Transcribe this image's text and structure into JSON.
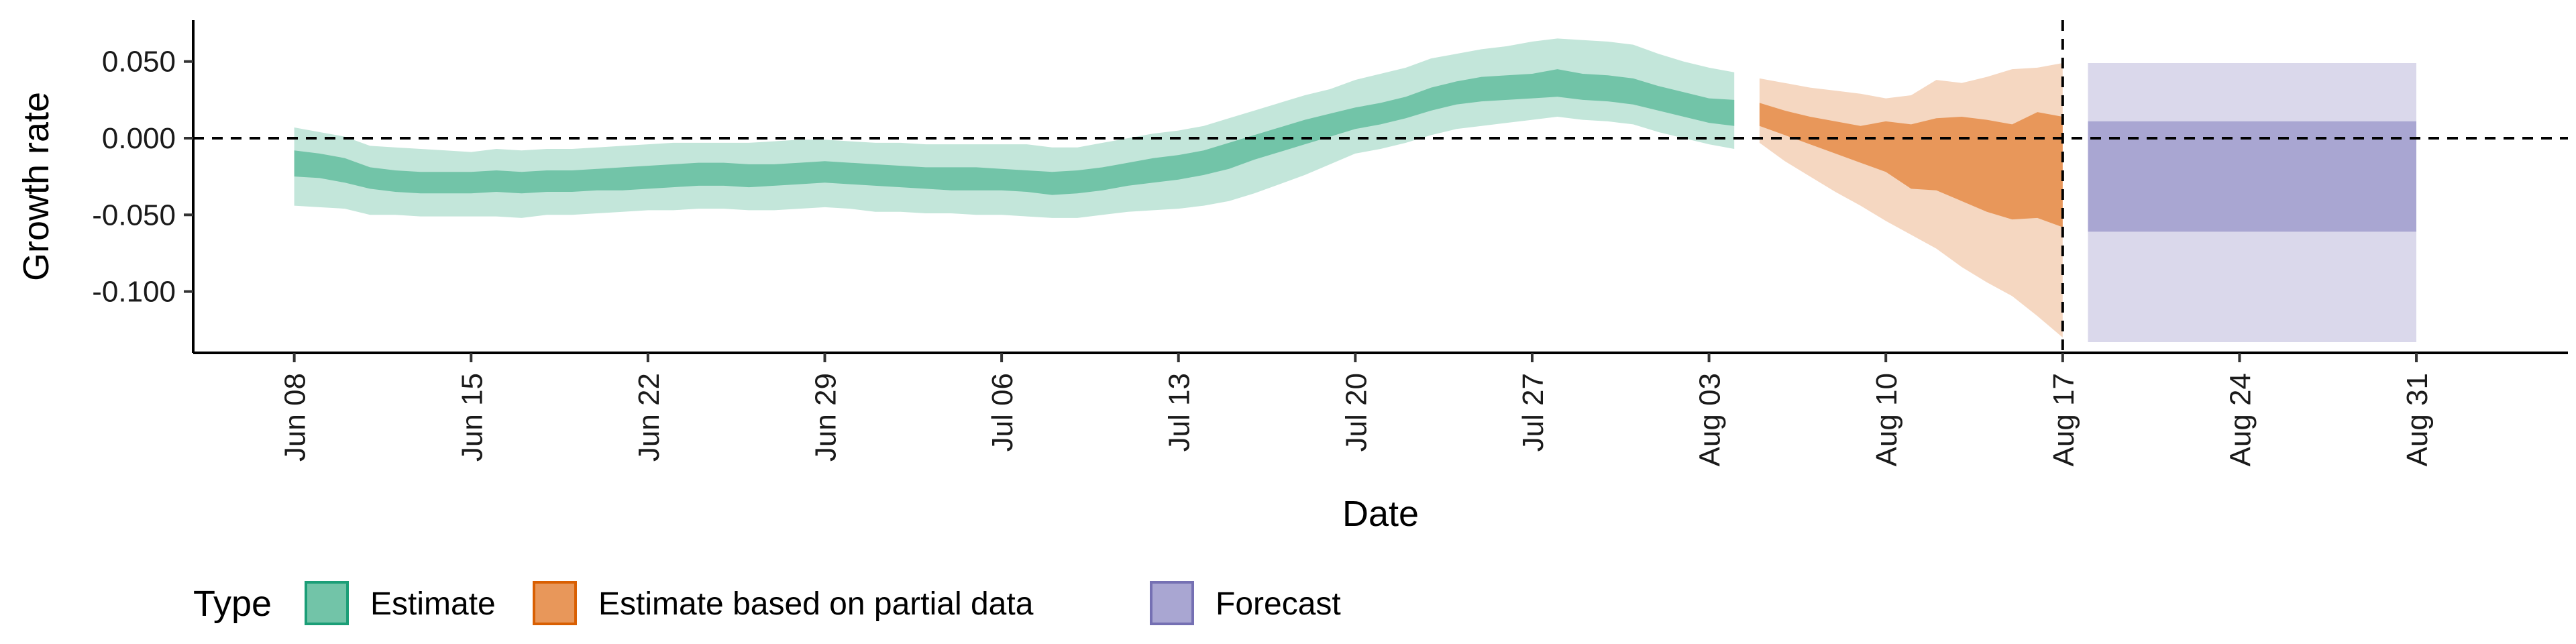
{
  "chart_data": {
    "type": "area",
    "xlabel": "Date",
    "ylabel": "Growth rate",
    "x_tick_labels": [
      "Jun 08",
      "Jun 15",
      "Jun 22",
      "Jun 29",
      "Jul 06",
      "Jul 13",
      "Jul 20",
      "Jul 27",
      "Aug 03",
      "Aug 10",
      "Aug 17",
      "Aug 24",
      "Aug 31"
    ],
    "x_tick_dates": [
      "2020-06-08",
      "2020-06-15",
      "2020-06-22",
      "2020-06-29",
      "2020-07-06",
      "2020-07-13",
      "2020-07-20",
      "2020-07-27",
      "2020-08-03",
      "2020-08-10",
      "2020-08-17",
      "2020-08-24",
      "2020-08-31"
    ],
    "y_tick_values": [
      0.05,
      0.0,
      -0.05,
      -0.1
    ],
    "y_tick_labels": [
      "0.050",
      "0.000",
      "-0.050",
      "-0.100"
    ],
    "ylim": [
      -0.14,
      0.077
    ],
    "xlim": [
      "2020-06-04",
      "2020-09-06"
    ],
    "grid": false,
    "reference_lines": [
      {
        "orientation": "horizontal",
        "y": 0.0,
        "style": "dashed"
      },
      {
        "orientation": "vertical",
        "x": "2020-08-17",
        "style": "dashed"
      }
    ],
    "legend": {
      "title": "Type",
      "position": "bottom-left",
      "entries": [
        {
          "label": "Estimate",
          "fill": "#72C4A8",
          "stroke": "#1B9E77"
        },
        {
          "label": "Estimate based on partial data",
          "fill": "#E8975A",
          "stroke": "#D95F02"
        },
        {
          "label": "Forecast",
          "fill": "#A9A6D2",
          "stroke": "#7570B3"
        }
      ]
    },
    "series": [
      {
        "name": "Estimate",
        "inner_color": "#72C4A8",
        "outer_color": "#C3E6DA",
        "points": [
          {
            "x": "2020-06-08",
            "lo90": -0.044,
            "lo50": -0.025,
            "hi50": -0.008,
            "hi90": 0.007
          },
          {
            "x": "2020-06-09",
            "lo90": -0.045,
            "lo50": -0.026,
            "hi50": -0.01,
            "hi90": 0.004
          },
          {
            "x": "2020-06-10",
            "lo90": -0.046,
            "lo50": -0.029,
            "hi50": -0.013,
            "hi90": 0.001
          },
          {
            "x": "2020-06-11",
            "lo90": -0.05,
            "lo50": -0.033,
            "hi50": -0.019,
            "hi90": -0.005
          },
          {
            "x": "2020-06-12",
            "lo90": -0.05,
            "lo50": -0.035,
            "hi50": -0.021,
            "hi90": -0.006
          },
          {
            "x": "2020-06-13",
            "lo90": -0.051,
            "lo50": -0.036,
            "hi50": -0.022,
            "hi90": -0.007
          },
          {
            "x": "2020-06-14",
            "lo90": -0.051,
            "lo50": -0.036,
            "hi50": -0.022,
            "hi90": -0.008
          },
          {
            "x": "2020-06-15",
            "lo90": -0.051,
            "lo50": -0.036,
            "hi50": -0.022,
            "hi90": -0.009
          },
          {
            "x": "2020-06-16",
            "lo90": -0.051,
            "lo50": -0.035,
            "hi50": -0.021,
            "hi90": -0.007
          },
          {
            "x": "2020-06-17",
            "lo90": -0.052,
            "lo50": -0.036,
            "hi50": -0.022,
            "hi90": -0.008
          },
          {
            "x": "2020-06-18",
            "lo90": -0.05,
            "lo50": -0.035,
            "hi50": -0.021,
            "hi90": -0.007
          },
          {
            "x": "2020-06-19",
            "lo90": -0.05,
            "lo50": -0.035,
            "hi50": -0.021,
            "hi90": -0.007
          },
          {
            "x": "2020-06-20",
            "lo90": -0.049,
            "lo50": -0.034,
            "hi50": -0.02,
            "hi90": -0.006
          },
          {
            "x": "2020-06-21",
            "lo90": -0.048,
            "lo50": -0.034,
            "hi50": -0.019,
            "hi90": -0.005
          },
          {
            "x": "2020-06-22",
            "lo90": -0.047,
            "lo50": -0.033,
            "hi50": -0.018,
            "hi90": -0.004
          },
          {
            "x": "2020-06-23",
            "lo90": -0.047,
            "lo50": -0.032,
            "hi50": -0.017,
            "hi90": -0.003
          },
          {
            "x": "2020-06-24",
            "lo90": -0.046,
            "lo50": -0.031,
            "hi50": -0.016,
            "hi90": -0.003
          },
          {
            "x": "2020-06-25",
            "lo90": -0.046,
            "lo50": -0.031,
            "hi50": -0.016,
            "hi90": -0.003
          },
          {
            "x": "2020-06-26",
            "lo90": -0.047,
            "lo50": -0.032,
            "hi50": -0.017,
            "hi90": -0.003
          },
          {
            "x": "2020-06-27",
            "lo90": -0.047,
            "lo50": -0.031,
            "hi50": -0.017,
            "hi90": -0.002
          },
          {
            "x": "2020-06-28",
            "lo90": -0.046,
            "lo50": -0.03,
            "hi50": -0.016,
            "hi90": -0.001
          },
          {
            "x": "2020-06-29",
            "lo90": -0.045,
            "lo50": -0.029,
            "hi50": -0.015,
            "hi90": -0.001
          },
          {
            "x": "2020-06-30",
            "lo90": -0.046,
            "lo50": -0.03,
            "hi50": -0.016,
            "hi90": -0.002
          },
          {
            "x": "2020-07-01",
            "lo90": -0.048,
            "lo50": -0.031,
            "hi50": -0.017,
            "hi90": -0.003
          },
          {
            "x": "2020-07-02",
            "lo90": -0.048,
            "lo50": -0.032,
            "hi50": -0.018,
            "hi90": -0.003
          },
          {
            "x": "2020-07-03",
            "lo90": -0.049,
            "lo50": -0.033,
            "hi50": -0.019,
            "hi90": -0.004
          },
          {
            "x": "2020-07-04",
            "lo90": -0.049,
            "lo50": -0.034,
            "hi50": -0.019,
            "hi90": -0.004
          },
          {
            "x": "2020-07-05",
            "lo90": -0.05,
            "lo50": -0.034,
            "hi50": -0.019,
            "hi90": -0.004
          },
          {
            "x": "2020-07-06",
            "lo90": -0.05,
            "lo50": -0.034,
            "hi50": -0.02,
            "hi90": -0.004
          },
          {
            "x": "2020-07-07",
            "lo90": -0.051,
            "lo50": -0.035,
            "hi50": -0.021,
            "hi90": -0.004
          },
          {
            "x": "2020-07-08",
            "lo90": -0.052,
            "lo50": -0.037,
            "hi50": -0.022,
            "hi90": -0.006
          },
          {
            "x": "2020-07-09",
            "lo90": -0.052,
            "lo50": -0.036,
            "hi50": -0.021,
            "hi90": -0.006
          },
          {
            "x": "2020-07-10",
            "lo90": -0.05,
            "lo50": -0.034,
            "hi50": -0.019,
            "hi90": -0.003
          },
          {
            "x": "2020-07-11",
            "lo90": -0.048,
            "lo50": -0.031,
            "hi50": -0.016,
            "hi90": 0.0
          },
          {
            "x": "2020-07-12",
            "lo90": -0.047,
            "lo50": -0.029,
            "hi50": -0.013,
            "hi90": 0.003
          },
          {
            "x": "2020-07-13",
            "lo90": -0.046,
            "lo50": -0.027,
            "hi50": -0.011,
            "hi90": 0.005
          },
          {
            "x": "2020-07-14",
            "lo90": -0.044,
            "lo50": -0.024,
            "hi50": -0.008,
            "hi90": 0.008
          },
          {
            "x": "2020-07-15",
            "lo90": -0.041,
            "lo50": -0.02,
            "hi50": -0.003,
            "hi90": 0.013
          },
          {
            "x": "2020-07-16",
            "lo90": -0.036,
            "lo50": -0.014,
            "hi50": 0.002,
            "hi90": 0.018
          },
          {
            "x": "2020-07-17",
            "lo90": -0.03,
            "lo50": -0.009,
            "hi50": 0.007,
            "hi90": 0.023
          },
          {
            "x": "2020-07-18",
            "lo90": -0.024,
            "lo50": -0.004,
            "hi50": 0.012,
            "hi90": 0.028
          },
          {
            "x": "2020-07-19",
            "lo90": -0.017,
            "lo50": 0.001,
            "hi50": 0.016,
            "hi90": 0.032
          },
          {
            "x": "2020-07-20",
            "lo90": -0.01,
            "lo50": 0.006,
            "hi50": 0.02,
            "hi90": 0.038
          },
          {
            "x": "2020-07-21",
            "lo90": -0.007,
            "lo50": 0.009,
            "hi50": 0.023,
            "hi90": 0.042
          },
          {
            "x": "2020-07-22",
            "lo90": -0.003,
            "lo50": 0.013,
            "hi50": 0.027,
            "hi90": 0.046
          },
          {
            "x": "2020-07-23",
            "lo90": 0.002,
            "lo50": 0.018,
            "hi50": 0.033,
            "hi90": 0.052
          },
          {
            "x": "2020-07-24",
            "lo90": 0.006,
            "lo50": 0.022,
            "hi50": 0.037,
            "hi90": 0.055
          },
          {
            "x": "2020-07-25",
            "lo90": 0.008,
            "lo50": 0.024,
            "hi50": 0.04,
            "hi90": 0.058
          },
          {
            "x": "2020-07-26",
            "lo90": 0.01,
            "lo50": 0.025,
            "hi50": 0.041,
            "hi90": 0.06
          },
          {
            "x": "2020-07-27",
            "lo90": 0.012,
            "lo50": 0.026,
            "hi50": 0.042,
            "hi90": 0.063
          },
          {
            "x": "2020-07-28",
            "lo90": 0.014,
            "lo50": 0.027,
            "hi50": 0.045,
            "hi90": 0.065
          },
          {
            "x": "2020-07-29",
            "lo90": 0.012,
            "lo50": 0.025,
            "hi50": 0.042,
            "hi90": 0.064
          },
          {
            "x": "2020-07-30",
            "lo90": 0.011,
            "lo50": 0.024,
            "hi50": 0.041,
            "hi90": 0.063
          },
          {
            "x": "2020-07-31",
            "lo90": 0.009,
            "lo50": 0.022,
            "hi50": 0.039,
            "hi90": 0.061
          },
          {
            "x": "2020-08-01",
            "lo90": 0.004,
            "lo50": 0.018,
            "hi50": 0.034,
            "hi90": 0.055
          },
          {
            "x": "2020-08-02",
            "lo90": 0.0,
            "lo50": 0.014,
            "hi50": 0.03,
            "hi90": 0.05
          },
          {
            "x": "2020-08-03",
            "lo90": -0.004,
            "lo50": 0.01,
            "hi50": 0.026,
            "hi90": 0.046
          },
          {
            "x": "2020-08-04",
            "lo90": -0.007,
            "lo50": 0.008,
            "hi50": 0.025,
            "hi90": 0.043
          }
        ]
      },
      {
        "name": "Estimate based on partial data",
        "inner_color": "#E8975A",
        "outer_color": "#F5D7C1",
        "points": [
          {
            "x": "2020-08-05",
            "lo90": -0.003,
            "lo50": 0.008,
            "hi50": 0.023,
            "hi90": 0.039
          },
          {
            "x": "2020-08-06",
            "lo90": -0.015,
            "lo50": 0.002,
            "hi50": 0.018,
            "hi90": 0.036
          },
          {
            "x": "2020-08-07",
            "lo90": -0.025,
            "lo50": -0.004,
            "hi50": 0.014,
            "hi90": 0.033
          },
          {
            "x": "2020-08-08",
            "lo90": -0.035,
            "lo50": -0.01,
            "hi50": 0.011,
            "hi90": 0.031
          },
          {
            "x": "2020-08-09",
            "lo90": -0.044,
            "lo50": -0.016,
            "hi50": 0.008,
            "hi90": 0.029
          },
          {
            "x": "2020-08-10",
            "lo90": -0.054,
            "lo50": -0.022,
            "hi50": 0.011,
            "hi90": 0.026
          },
          {
            "x": "2020-08-11",
            "lo90": -0.063,
            "lo50": -0.033,
            "hi50": 0.009,
            "hi90": 0.028
          },
          {
            "x": "2020-08-12",
            "lo90": -0.072,
            "lo50": -0.034,
            "hi50": 0.013,
            "hi90": 0.038
          },
          {
            "x": "2020-08-13",
            "lo90": -0.084,
            "lo50": -0.041,
            "hi50": 0.014,
            "hi90": 0.036
          },
          {
            "x": "2020-08-14",
            "lo90": -0.094,
            "lo50": -0.048,
            "hi50": 0.012,
            "hi90": 0.04
          },
          {
            "x": "2020-08-15",
            "lo90": -0.103,
            "lo50": -0.053,
            "hi50": 0.009,
            "hi90": 0.045
          },
          {
            "x": "2020-08-16",
            "lo90": -0.116,
            "lo50": -0.052,
            "hi50": 0.017,
            "hi90": 0.046
          },
          {
            "x": "2020-08-17",
            "lo90": -0.13,
            "lo50": -0.058,
            "hi50": 0.014,
            "hi90": 0.049
          }
        ]
      },
      {
        "name": "Forecast",
        "inner_color": "#A9A6D2",
        "outer_color": "#DAD8EB",
        "points": [
          {
            "x": "2020-08-18",
            "lo90": -0.133,
            "lo50": -0.061,
            "hi50": 0.011,
            "hi90": 0.049
          },
          {
            "x": "2020-08-31",
            "lo90": -0.133,
            "lo50": -0.061,
            "hi50": 0.011,
            "hi90": 0.049
          }
        ]
      }
    ]
  }
}
